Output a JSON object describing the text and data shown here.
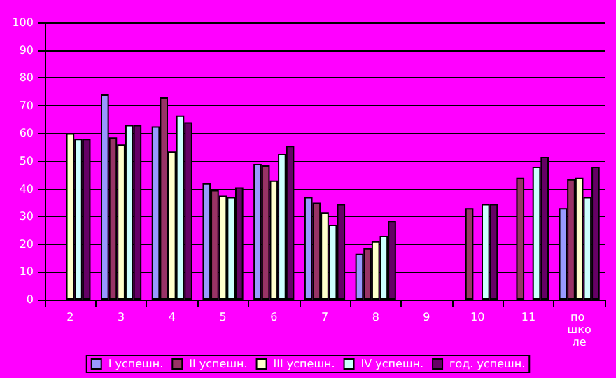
{
  "chart_data": {
    "type": "bar",
    "categories": [
      "2",
      "3",
      "4",
      "5",
      "6",
      "7",
      "8",
      "9",
      "10",
      "11",
      "по школе"
    ],
    "series": [
      {
        "name": "I успешн.",
        "color": "#9999ff",
        "values": [
          null,
          74,
          62.5,
          42,
          49,
          37,
          16.5,
          null,
          null,
          null,
          33
        ]
      },
      {
        "name": "II успешн.",
        "color": "#993366",
        "values": [
          null,
          58.5,
          73,
          39.5,
          48.5,
          35,
          18.5,
          null,
          33,
          44,
          43.5
        ]
      },
      {
        "name": "III успешн.",
        "color": "#ffffcc",
        "values": [
          60,
          56,
          53.5,
          37.5,
          43,
          31.5,
          21,
          null,
          null,
          null,
          44
        ]
      },
      {
        "name": "IV успешн.",
        "color": "#ccffff",
        "values": [
          58,
          63,
          66.5,
          37,
          52.5,
          27,
          23,
          null,
          34.5,
          48,
          37
        ]
      },
      {
        "name": "год. успешн.",
        "color": "#660066",
        "values": [
          58,
          63,
          64,
          40.5,
          55.5,
          34.5,
          28.5,
          null,
          34.5,
          51.5,
          48
        ]
      }
    ],
    "ylim": [
      0,
      100
    ],
    "yticks": [
      0,
      10,
      20,
      30,
      40,
      50,
      60,
      70,
      80,
      90,
      100
    ],
    "grid": "y",
    "legend": "bottom"
  }
}
